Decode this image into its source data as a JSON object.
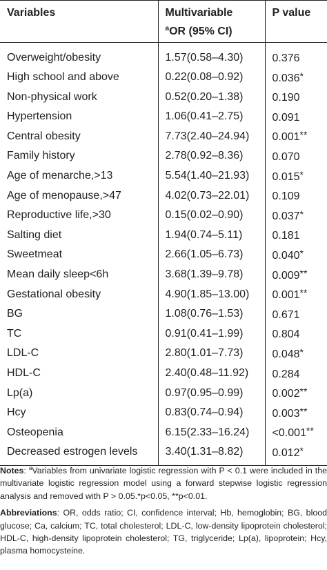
{
  "table": {
    "headers": {
      "variables": "Variables",
      "or_line1": "Multivariable",
      "or_sup": "a",
      "or_line2": "OR (95% CI)",
      "pvalue": "P value"
    },
    "rows": [
      {
        "variable": "Overweight/obesity",
        "or": "1.57(0.58–4.30)",
        "p": "0.376",
        "sig": ""
      },
      {
        "variable": "High school and above",
        "or": "0.22(0.08–0.92)",
        "p": "0.036",
        "sig": "*"
      },
      {
        "variable": "Non-physical work",
        "or": "0.52(0.20–1.38)",
        "p": "0.190",
        "sig": ""
      },
      {
        "variable": "Hypertension",
        "or": "1.06(0.41–2.75)",
        "p": "0.091",
        "sig": ""
      },
      {
        "variable": "Central obesity",
        "or": "7.73(2.40–24.94)",
        "p": "0.001",
        "sig": "**"
      },
      {
        "variable": "Family history",
        "or": "2.78(0.92–8.36)",
        "p": "0.070",
        "sig": ""
      },
      {
        "variable": "Age of menarche,>13",
        "or": "5.54(1.40–21.93)",
        "p": "0.015",
        "sig": "*"
      },
      {
        "variable": "Age of menopause,>47",
        "or": "4.02(0.73–22.01)",
        "p": "0.109",
        "sig": ""
      },
      {
        "variable": "Reproductive life,>30",
        "or": "0.15(0.02–0.90)",
        "p": "0.037",
        "sig": "*"
      },
      {
        "variable": "Salting diet",
        "or": "1.94(0.74–5.11)",
        "p": "0.181",
        "sig": ""
      },
      {
        "variable": "Sweetmeat",
        "or": "2.66(1.05–6.73)",
        "p": "0.040",
        "sig": "*"
      },
      {
        "variable": "Mean daily sleep<6h",
        "or": "3.68(1.39–9.78)",
        "p": "0.009",
        "sig": "**"
      },
      {
        "variable": "Gestational obesity",
        "or": "4.90(1.85–13.00)",
        "p": "0.001",
        "sig": "**"
      },
      {
        "variable": "BG",
        "or": "1.08(0.76–1.53)",
        "p": "0.671",
        "sig": ""
      },
      {
        "variable": "TC",
        "or": "0.91(0.41–1.99)",
        "p": "0.804",
        "sig": ""
      },
      {
        "variable": "LDL-C",
        "or": "2.80(1.01–7.73)",
        "p": "0.048",
        "sig": "*"
      },
      {
        "variable": "HDL-C",
        "or": "2.40(0.48–11.92)",
        "p": "0.284",
        "sig": ""
      },
      {
        "variable": "Lp(a)",
        "or": "0.97(0.95–0.99)",
        "p": "0.002",
        "sig": "**"
      },
      {
        "variable": "Hcy",
        "or": "0.83(0.74–0.94)",
        "p": "0.003",
        "sig": "**"
      },
      {
        "variable": "Osteopenia",
        "or": "6.15(2.33–16.24)",
        "p": "<0.001",
        "sig": "**"
      },
      {
        "variable": "Decreased estrogen levels",
        "or": "3.40(1.31–8.82)",
        "p": "0.012",
        "sig": "*"
      }
    ]
  },
  "notes": {
    "label": "Notes",
    "sup": "a",
    "text": "Variables from univariate logistic regression with P < 0.1 were included in the multivariate logistic regression model using a forward stepwise logistic regression analysis and removed with P > 0.05.*p<0.05, **p<0.01."
  },
  "abbreviations": {
    "label": "Abbreviations",
    "text": ": OR, odds ratio; CI, confidence interval; Hb, hemoglobin; BG, blood glucose; Ca, calcium; TC, total cholesterol; LDL-C, low-density lipoprotein cholesterol; HDL-C, high-density lipoprotein cholesterol; TG, triglyceride; Lp(a), lipoprotein; Hcy, plasma homocysteine."
  }
}
